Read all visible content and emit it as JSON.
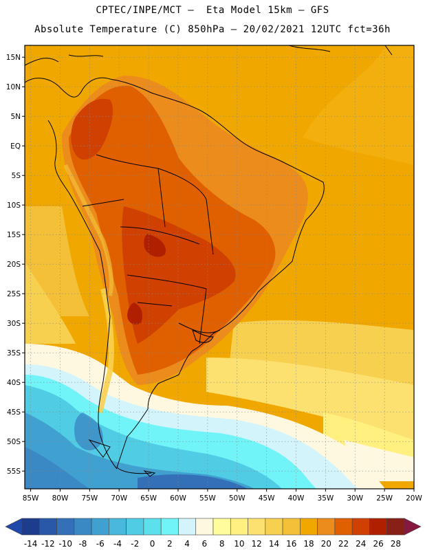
{
  "header": {
    "line1": "CPTEC/INPE/MCT –  Eta Model 15km – GFS",
    "line2": "Absolute Temperature (C) 850hPa – 20/02/2021 12UTC fct=36h"
  },
  "map": {
    "lon_range": [
      -86,
      -20
    ],
    "lat_range": [
      -58,
      17
    ],
    "lon_labels": [
      "85W",
      "80W",
      "75W",
      "70W",
      "65W",
      "60W",
      "55W",
      "50W",
      "45W",
      "40W",
      "35W",
      "30W",
      "25W",
      "20W"
    ],
    "lon_values": [
      -85,
      -80,
      -75,
      -70,
      -65,
      -60,
      -55,
      -50,
      -45,
      -40,
      -35,
      -30,
      -25,
      -20
    ],
    "lat_labels": [
      "15N",
      "10N",
      "5N",
      "EQ",
      "5S",
      "10S",
      "15S",
      "20S",
      "25S",
      "30S",
      "35S",
      "40S",
      "45S",
      "50S",
      "55S"
    ],
    "lat_values": [
      15,
      10,
      5,
      0,
      -5,
      -10,
      -15,
      -20,
      -25,
      -30,
      -35,
      -40,
      -45,
      -50,
      -55
    ]
  },
  "colorbar": {
    "labels": [
      "-14",
      "-12",
      "-10",
      "-8",
      "-6",
      "-4",
      "-2",
      "0",
      "2",
      "4",
      "6",
      "8",
      "10",
      "12",
      "14",
      "16",
      "18",
      "20",
      "22",
      "24",
      "26",
      "28"
    ],
    "colors": [
      "#1e3c8c",
      "#2a58a8",
      "#3470b8",
      "#3a88c4",
      "#40a0d0",
      "#48b8dc",
      "#50cce4",
      "#5ce0ec",
      "#70f4f8",
      "#d4f4fc",
      "#fff8e0",
      "#fffc9c",
      "#fff080",
      "#fce070",
      "#f8d050",
      "#f4c038",
      "#f0a800",
      "#ec8c1c",
      "#e06000",
      "#d04000",
      "#b02000",
      "#882018"
    ],
    "end_colors": [
      "#2048a8",
      "#881840"
    ]
  }
}
